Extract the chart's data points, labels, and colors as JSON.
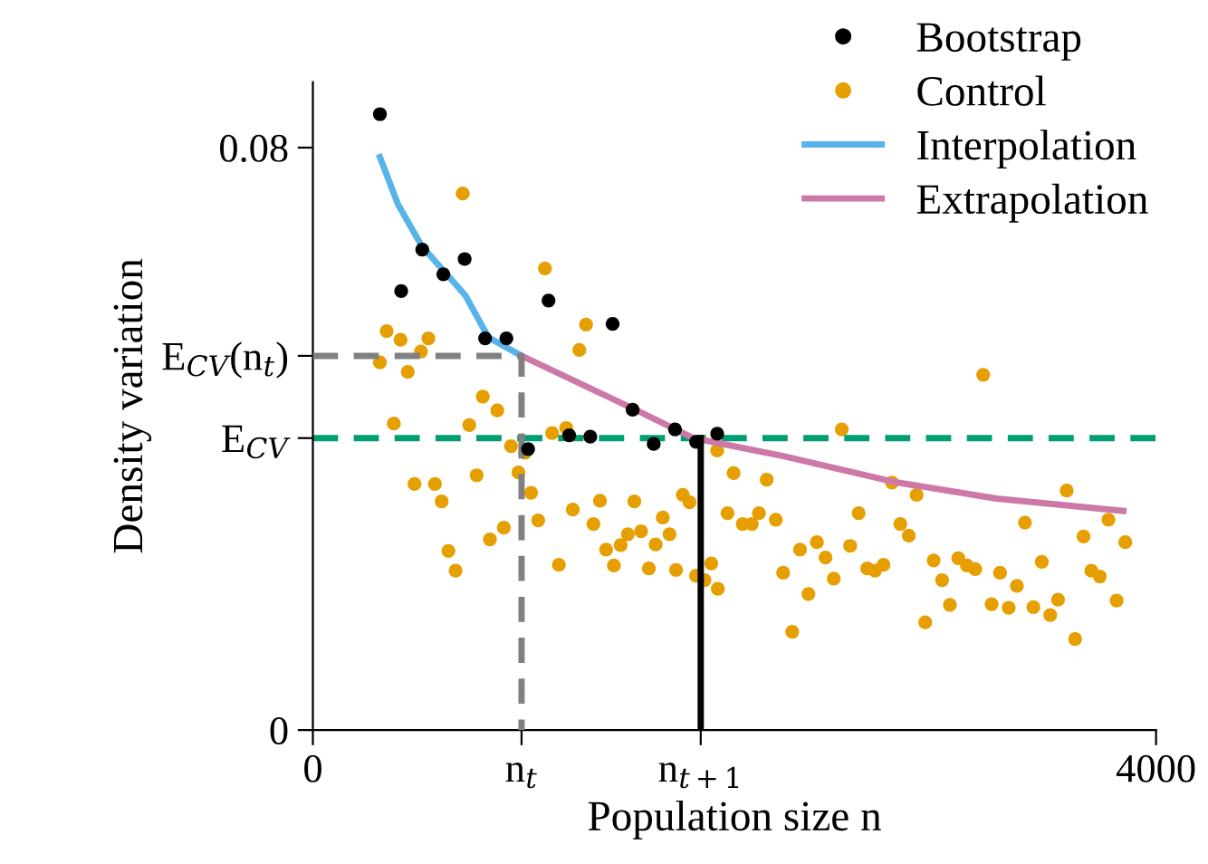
{
  "chart_data": {
    "type": "scatter",
    "xlabel": "Population size n",
    "ylabel": "Density variation",
    "xlim": [
      0,
      4000
    ],
    "ylim": [
      0,
      0.089
    ],
    "xticks": [
      0,
      {
        "value": 990,
        "label": "n$_{t}$"
      },
      {
        "value": 1840,
        "label": "n$_{t+1}$"
      },
      4000
    ],
    "yticks": [
      0,
      {
        "value": 0.0401,
        "label": "E$_{CV}$"
      },
      {
        "value": 0.0514,
        "label": "E$_{CV}$(n$_{t}$)"
      },
      0.08
    ],
    "grid": false,
    "legend": "top right",
    "ref_lines": [
      {
        "axis": "y",
        "value": 0.0401,
        "color": "#009e73",
        "line_style": "dashed"
      }
    ],
    "series": [
      {
        "name": "Bootstrap",
        "marker": "circle",
        "color": "#000000",
        "x": [
          318,
          419,
          519,
          619,
          720,
          817,
          918,
          1118,
          1422,
          1021,
          1216,
          1316,
          1517,
          1617,
          1718,
          1818,
          1918
        ],
        "values": [
          0.0846,
          0.0603,
          0.066,
          0.0626,
          0.0647,
          0.0538,
          0.0538,
          0.059,
          0.0558,
          0.0386,
          0.0405,
          0.0403,
          0.044,
          0.0393,
          0.0413,
          0.0396,
          0.0407
        ]
      },
      {
        "name": "Control",
        "marker": "circle",
        "color": "#e69f00",
        "x": [
          711,
          350,
          416,
          548,
          513,
          318,
          450,
          1101,
          1296,
          1264,
          806,
          875,
          384,
          742,
          1135,
          1202,
          940,
          1006,
          975,
          482,
          579,
          611,
          777,
          1035,
          1069,
          1233,
          1362,
          1525,
          1331,
          643,
          677,
          840,
          906,
          1167,
          1391,
          1428,
          1460,
          1494,
          1557,
          1594,
          1626,
          1660,
          1692,
          1723,
          1755,
          1787,
          1818,
          1858,
          1890,
          1921,
          1918,
          1996,
          1967,
          2039,
          2082,
          2116,
          2153,
          2196,
          2231,
          2274,
          2311,
          2351,
          2391,
          2432,
          2471,
          2509,
          2549,
          2589,
          2630,
          2667,
          2707,
          2747,
          2787,
          2827,
          2864,
          2905,
          2945,
          2985,
          3022,
          3062,
          3103,
          3142,
          3180,
          3220,
          3260,
          3301,
          3340,
          3378,
          3418,
          3458,
          3498,
          3535,
          3576,
          3616,
          3656,
          3693,
          3733,
          3774,
          3813,
          3854
        ],
        "values": [
          0.0737,
          0.0548,
          0.0536,
          0.0538,
          0.052,
          0.0505,
          0.0492,
          0.0634,
          0.0557,
          0.0522,
          0.0458,
          0.0439,
          0.0421,
          0.0419,
          0.0408,
          0.0415,
          0.039,
          0.0381,
          0.0354,
          0.0338,
          0.0338,
          0.0314,
          0.035,
          0.0326,
          0.0288,
          0.0303,
          0.0315,
          0.0314,
          0.0283,
          0.0246,
          0.0219,
          0.0262,
          0.0278,
          0.0227,
          0.0248,
          0.0226,
          0.0254,
          0.0269,
          0.0273,
          0.0222,
          0.0255,
          0.0292,
          0.0269,
          0.022,
          0.0323,
          0.0313,
          0.0212,
          0.0206,
          0.0229,
          0.0194,
          0.0384,
          0.0353,
          0.0298,
          0.0283,
          0.0283,
          0.0298,
          0.0344,
          0.0289,
          0.0216,
          0.0135,
          0.0248,
          0.0187,
          0.0258,
          0.0237,
          0.0208,
          0.0413,
          0.0253,
          0.0298,
          0.0222,
          0.0219,
          0.0227,
          0.034,
          0.0283,
          0.0267,
          0.0323,
          0.0148,
          0.0233,
          0.0206,
          0.0172,
          0.0236,
          0.0226,
          0.0221,
          0.0488,
          0.0173,
          0.0216,
          0.0168,
          0.0198,
          0.0285,
          0.0169,
          0.0231,
          0.0158,
          0.0179,
          0.0329,
          0.0125,
          0.0266,
          0.0219,
          0.0211,
          0.0289,
          0.0178,
          0.0258
        ]
      },
      {
        "name": "Interpolation",
        "type": "line",
        "color": "#56b4e9",
        "x": [
          318,
          404,
          516,
          723,
          834,
          990
        ],
        "values": [
          0.0787,
          0.0722,
          0.0665,
          0.0597,
          0.0539,
          0.0514
        ]
      },
      {
        "name": "Extrapolation",
        "type": "line",
        "color": "#cc79a7",
        "x": [
          990,
          1523,
          1806,
          2237,
          2753,
          3243,
          3845
        ],
        "values": [
          0.0514,
          0.0441,
          0.0401,
          0.0376,
          0.0341,
          0.0318,
          0.0301
        ]
      },
      {
        "type": "line",
        "color": "#808080",
        "line_style": "dashed",
        "x": [
          0,
          990,
          990
        ],
        "values": [
          0.0514,
          0.0514,
          0
        ]
      },
      {
        "type": "line",
        "color": "#000000",
        "line_style": "solid",
        "x": [
          1840,
          1840
        ],
        "values": [
          0,
          0.0401
        ]
      }
    ]
  }
}
